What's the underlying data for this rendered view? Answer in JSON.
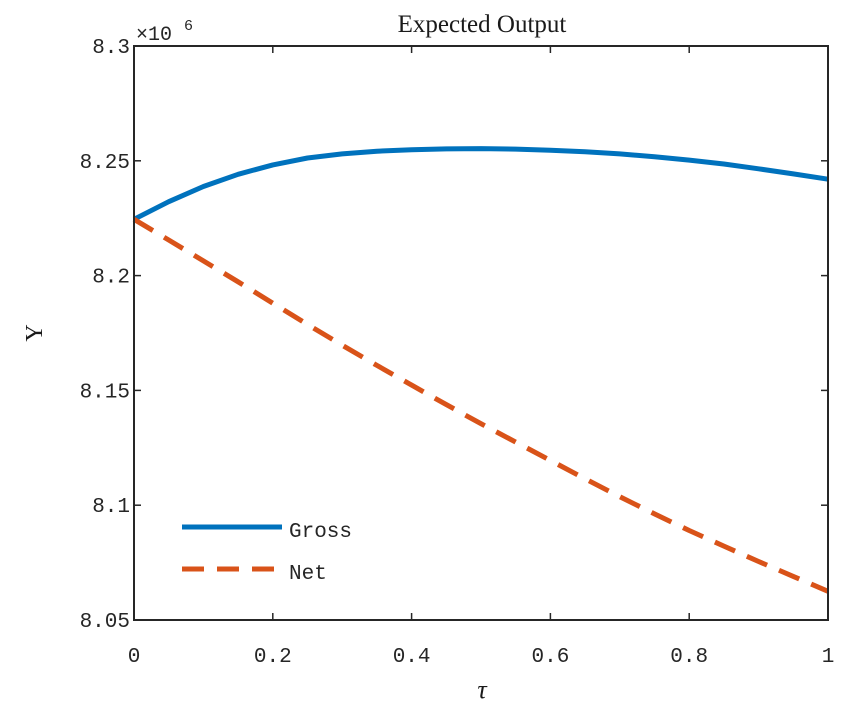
{
  "chart_data": {
    "type": "line",
    "title": "Expected Output",
    "xlabel": "τ",
    "ylabel": "Y",
    "exponent_label": "×10",
    "exponent_power": "6",
    "xlim": [
      0,
      1
    ],
    "ylim": [
      8.05,
      8.3
    ],
    "x_ticks": [
      0,
      0.2,
      0.4,
      0.6,
      0.8,
      1
    ],
    "x_tick_labels": [
      "0",
      "0.2",
      "0.4",
      "0.6",
      "0.8",
      "1"
    ],
    "y_ticks": [
      8.05,
      8.1,
      8.15,
      8.2,
      8.25,
      8.3
    ],
    "y_tick_labels": [
      "8.05",
      "8.1",
      "8.15",
      "8.2",
      "8.25",
      "8.3"
    ],
    "grid": false,
    "legend_position": "bottom-left",
    "series": [
      {
        "name": "Gross",
        "color": "#0072BD",
        "style": "solid",
        "x": [
          0,
          0.05,
          0.1,
          0.15,
          0.2,
          0.25,
          0.3,
          0.35,
          0.4,
          0.45,
          0.5,
          0.55,
          0.6,
          0.65,
          0.7,
          0.75,
          0.8,
          0.85,
          0.9,
          0.95,
          1
        ],
        "y": [
          8.2245,
          8.2322,
          8.2388,
          8.2441,
          8.2482,
          8.2512,
          8.253,
          8.2542,
          8.2548,
          8.2552,
          8.2553,
          8.2551,
          8.2546,
          8.2539,
          8.253,
          8.2518,
          8.2503,
          8.2486,
          8.2465,
          8.2443,
          8.242
        ]
      },
      {
        "name": "Net",
        "color": "#D95319",
        "style": "dashed",
        "x": [
          0,
          0.05,
          0.1,
          0.15,
          0.2,
          0.25,
          0.3,
          0.35,
          0.4,
          0.45,
          0.5,
          0.55,
          0.6,
          0.65,
          0.7,
          0.75,
          0.8,
          0.85,
          0.9,
          0.95,
          1
        ],
        "y": [
          8.2245,
          8.2155,
          8.2064,
          8.1973,
          8.188,
          8.1787,
          8.1697,
          8.1609,
          8.1523,
          8.1438,
          8.1355,
          8.1275,
          8.1195,
          8.1115,
          8.1037,
          8.0962,
          8.089,
          8.0822,
          8.0755,
          8.069,
          8.0625
        ]
      }
    ]
  }
}
